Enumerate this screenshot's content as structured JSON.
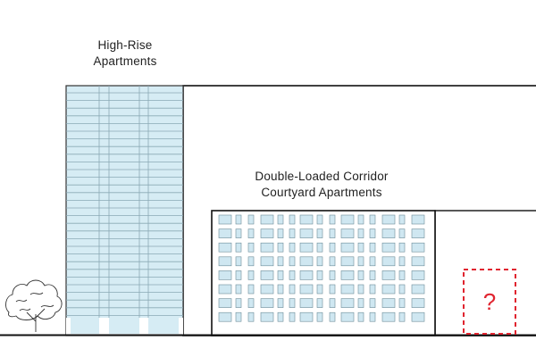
{
  "labels": {
    "highrise_line1": "High-Rise",
    "highrise_line2": "Apartments",
    "courtyard_line1": "Double-Loaded Corridor",
    "courtyard_line2": "Courtyard Apartments",
    "unknown_mark": "?"
  },
  "colors": {
    "outline": "#111111",
    "glass": "#d6ecf4",
    "glass_line": "#8aa9b5",
    "window": "#cfe7f1",
    "unknown_accent": "#e0242f"
  },
  "icons": {
    "tree": "tree-icon",
    "unknown": "question-mark-icon"
  }
}
